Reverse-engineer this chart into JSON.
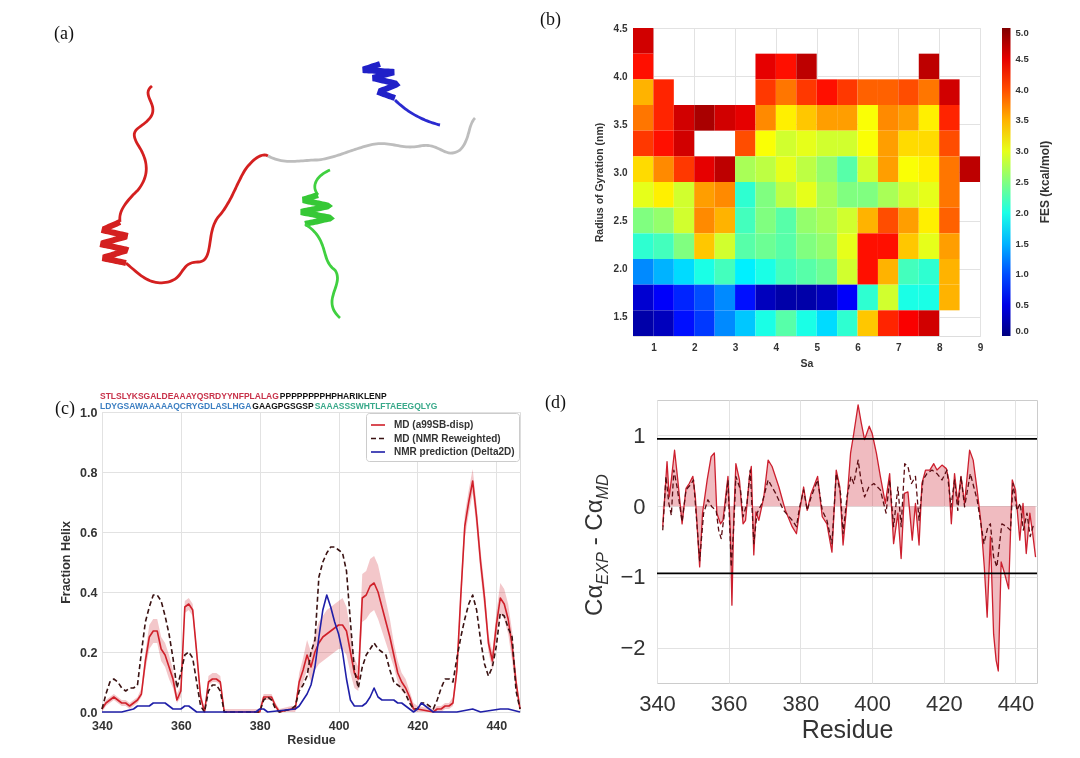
{
  "chart_data": [
    {
      "type": "other",
      "title": "(a)"
    },
    {
      "type": "heatmap",
      "title": "(b)",
      "xlabel": "Sa",
      "ylabel": "Radius of Gyration (nm)",
      "clabel": "FES (kcal/mol)",
      "xlim": [
        0.5,
        9
      ],
      "ylim": [
        1.3,
        4.5
      ],
      "xticks": [
        1,
        2,
        3,
        4,
        5,
        6,
        7,
        8,
        9
      ],
      "yticks": [
        1.5,
        {
          "value": 2,
          "label": "2.0"
        },
        2.5,
        {
          "value": 3,
          "label": "3.0"
        },
        3.5,
        {
          "value": 4,
          "label": "4.0"
        },
        4.5
      ],
      "clim": [
        0,
        5
      ],
      "cticks": [
        {
          "value": 0,
          "label": "0.0"
        },
        0.5,
        {
          "value": 1,
          "label": "1.0"
        },
        1.5,
        {
          "value": 2,
          "label": "2.0"
        },
        2.5,
        {
          "value": 3,
          "label": "3.0"
        },
        3.5,
        {
          "value": 4,
          "label": "4.0"
        },
        4.5,
        {
          "value": 5,
          "label": "5.0"
        }
      ],
      "grid": true,
      "cells": [
        [
          4.6,
          null,
          null,
          null,
          null,
          null,
          null,
          null,
          null,
          null,
          null,
          null,
          null,
          null,
          null,
          null,
          null
        ],
        [
          4.3,
          null,
          null,
          null,
          null,
          null,
          4.5,
          4.3,
          4.7,
          null,
          null,
          null,
          null,
          null,
          4.7,
          null,
          null
        ],
        [
          3.5,
          4.2,
          null,
          null,
          null,
          null,
          4.1,
          3.8,
          4.1,
          4.3,
          4.1,
          3.9,
          3.9,
          4.0,
          3.8,
          4.6,
          null
        ],
        [
          3.8,
          4.2,
          4.6,
          4.8,
          4.6,
          4.5,
          3.7,
          3.2,
          3.4,
          3.6,
          3.6,
          3.1,
          3.7,
          3.6,
          3.2,
          4.2,
          null
        ],
        [
          4.1,
          4.3,
          4.6,
          null,
          null,
          4.0,
          3.1,
          2.9,
          3.0,
          2.9,
          2.9,
          3.1,
          3.6,
          3.3,
          3.3,
          4.0,
          null
        ],
        [
          3.3,
          3.7,
          4.1,
          4.5,
          4.7,
          2.7,
          2.8,
          3.0,
          2.8,
          2.6,
          2.3,
          2.9,
          3.6,
          3.1,
          3.2,
          3.8,
          4.7
        ],
        [
          3.0,
          3.2,
          2.9,
          3.6,
          3.7,
          2.1,
          2.5,
          2.8,
          3.0,
          2.7,
          2.5,
          2.5,
          2.7,
          2.9,
          3.0,
          3.8,
          null
        ],
        [
          2.5,
          2.6,
          2.9,
          3.7,
          3.5,
          2.2,
          2.5,
          2.3,
          2.6,
          2.7,
          2.9,
          3.5,
          4.0,
          3.6,
          3.2,
          3.9,
          null
        ],
        [
          2.1,
          2.2,
          2.5,
          3.4,
          2.9,
          2.3,
          2.4,
          2.3,
          2.5,
          2.6,
          3.0,
          4.3,
          4.3,
          3.4,
          3.0,
          3.6,
          null
        ],
        [
          1.3,
          1.5,
          1.7,
          2.0,
          2.2,
          1.8,
          2.0,
          2.2,
          2.3,
          2.4,
          2.9,
          4.3,
          3.5,
          2.2,
          2.1,
          3.5,
          null
        ],
        [
          0.4,
          0.6,
          0.8,
          1.0,
          1.3,
          0.7,
          0.3,
          0.2,
          0.2,
          0.3,
          0.6,
          2.1,
          2.9,
          2.0,
          2.0,
          3.5,
          null
        ],
        [
          0.2,
          0.3,
          0.7,
          0.9,
          1.3,
          1.6,
          2.0,
          2.3,
          2.0,
          1.7,
          2.1,
          3.4,
          4.2,
          4.4,
          4.6,
          null,
          null
        ]
      ]
    },
    {
      "type": "line",
      "title": "(c)",
      "xlabel": "Residue",
      "ylabel": "Fraction Helix",
      "annotations": [
        "STLSLYKSGALDEAAAYQSRDYYNFPLALAG",
        "PPPPPPPPHPHARIKLENP",
        "LDYGSAWAAAAAQCRYGDLASLHGA",
        "GAAGPGSGSP",
        "SAAASSSWHTLFTAEEGQLYG"
      ],
      "xlim": [
        340,
        446
      ],
      "ylim": [
        0,
        1
      ],
      "xticks": [
        340,
        360,
        380,
        400,
        420,
        440
      ],
      "yticks": [
        {
          "value": 0,
          "label": "0.0"
        },
        0.2,
        0.4,
        0.6,
        0.8,
        {
          "value": 1,
          "label": "1.0"
        }
      ],
      "grid": true,
      "legend": "top right",
      "series": [
        {
          "name": "MD (a99SB-disp)",
          "color": "#d0202a",
          "x": [
            340,
            341,
            342,
            343,
            344,
            345,
            346,
            347,
            348,
            349,
            350,
            351,
            352,
            353,
            354,
            355,
            356,
            357,
            358,
            359,
            360,
            361,
            362,
            363,
            364,
            365,
            366,
            367,
            368,
            369,
            370,
            371,
            380,
            381,
            382,
            383,
            384,
            385,
            388,
            389,
            390,
            391,
            392,
            393,
            394,
            395,
            396,
            397,
            398,
            399,
            400,
            401,
            402,
            403,
            404,
            405,
            406,
            407,
            408,
            409,
            410,
            411,
            412,
            413,
            414,
            415,
            416,
            417,
            418,
            419,
            420,
            424,
            425,
            426,
            427,
            428,
            429,
            430,
            431,
            432,
            433,
            434,
            435,
            436,
            437,
            438,
            439,
            440,
            441,
            442,
            443,
            444,
            445,
            446
          ],
          "values": [
            0.01,
            0.03,
            0.04,
            0.05,
            0.04,
            0.03,
            0.03,
            0.02,
            0.03,
            0.04,
            0.06,
            0.17,
            0.25,
            0.27,
            0.27,
            0.21,
            0.19,
            0.15,
            0.11,
            0.04,
            0.07,
            0.35,
            0.36,
            0.34,
            0.2,
            0.05,
            0,
            0.1,
            0.11,
            0.11,
            0.1,
            0,
            0,
            0.05,
            0.05,
            0.05,
            0.02,
            0,
            0.01,
            0.01,
            0.1,
            0.14,
            0.19,
            0.15,
            0.2,
            0.23,
            0.25,
            0.26,
            0.27,
            0.28,
            0.29,
            0.29,
            0.27,
            0.2,
            0.13,
            0.11,
            0.38,
            0.39,
            0.42,
            0.43,
            0.4,
            0.35,
            0.3,
            0.25,
            0.19,
            0.13,
            0.1,
            0.08,
            0.05,
            0.01,
            0.01,
            0,
            0.01,
            0.01,
            0.02,
            0.02,
            0.03,
            0.14,
            0.39,
            0.62,
            0.7,
            0.77,
            0.65,
            0.5,
            0.38,
            0.23,
            0.17,
            0.29,
            0.38,
            0.36,
            0.31,
            0.22,
            0.1,
            0.01
          ],
          "lower": [
            0,
            0.02,
            0.03,
            0.04,
            0.03,
            0.02,
            0.02,
            0.01,
            0.02,
            0.03,
            0.05,
            0.14,
            0.21,
            0.23,
            0.23,
            0.17,
            0.15,
            0.11,
            0.08,
            0.03,
            0.05,
            0.33,
            0.34,
            0.32,
            0.18,
            0.04,
            0,
            0.09,
            0.1,
            0.1,
            0.09,
            0,
            0,
            0.04,
            0.04,
            0.04,
            0.01,
            0,
            0,
            0,
            0.07,
            0.1,
            0.14,
            0.1,
            0.14,
            0.16,
            0.17,
            0.18,
            0.19,
            0.2,
            0.21,
            0.21,
            0.19,
            0.13,
            0.08,
            0.07,
            0.3,
            0.31,
            0.33,
            0.34,
            0.31,
            0.27,
            0.23,
            0.19,
            0.15,
            0.1,
            0.07,
            0.06,
            0.03,
            0,
            0,
            0,
            0,
            0,
            0.01,
            0.01,
            0.02,
            0.11,
            0.35,
            0.58,
            0.66,
            0.73,
            0.61,
            0.46,
            0.34,
            0.2,
            0.14,
            0.25,
            0.33,
            0.31,
            0.26,
            0.17,
            0.07,
            0
          ],
          "upper": [
            0.02,
            0.04,
            0.05,
            0.06,
            0.05,
            0.04,
            0.04,
            0.03,
            0.04,
            0.05,
            0.08,
            0.2,
            0.29,
            0.31,
            0.31,
            0.25,
            0.23,
            0.19,
            0.14,
            0.06,
            0.09,
            0.37,
            0.38,
            0.36,
            0.22,
            0.07,
            0.01,
            0.12,
            0.13,
            0.13,
            0.12,
            0.01,
            0.01,
            0.06,
            0.06,
            0.06,
            0.03,
            0.01,
            0.02,
            0.02,
            0.13,
            0.18,
            0.24,
            0.2,
            0.26,
            0.3,
            0.32,
            0.34,
            0.35,
            0.36,
            0.37,
            0.38,
            0.35,
            0.27,
            0.18,
            0.15,
            0.46,
            0.47,
            0.51,
            0.52,
            0.49,
            0.43,
            0.37,
            0.31,
            0.23,
            0.17,
            0.13,
            0.11,
            0.07,
            0.03,
            0.02,
            0.01,
            0.02,
            0.02,
            0.03,
            0.03,
            0.05,
            0.17,
            0.43,
            0.66,
            0.74,
            0.81,
            0.69,
            0.54,
            0.42,
            0.26,
            0.2,
            0.33,
            0.43,
            0.41,
            0.36,
            0.27,
            0.13,
            0.01
          ]
        },
        {
          "name": "MD (NMR Reweighted)",
          "color": "#3a1212",
          "line_style": "dashed",
          "x": [
            340,
            341,
            342,
            343,
            344,
            345,
            346,
            347,
            348,
            349,
            350,
            351,
            352,
            353,
            354,
            355,
            356,
            357,
            358,
            359,
            360,
            361,
            362,
            363,
            364,
            365,
            366,
            367,
            368,
            369,
            370,
            371,
            372,
            380,
            381,
            382,
            383,
            384,
            385,
            388,
            389,
            390,
            391,
            392,
            393,
            394,
            395,
            396,
            397,
            398,
            399,
            400,
            401,
            402,
            403,
            404,
            405,
            406,
            407,
            408,
            409,
            410,
            411,
            412,
            413,
            414,
            415,
            416,
            417,
            418,
            419,
            420,
            421,
            422,
            423,
            424,
            425,
            426,
            427,
            428,
            429,
            430,
            431,
            432,
            433,
            434,
            435,
            436,
            437,
            438,
            439,
            440,
            441,
            442,
            443,
            444,
            445,
            446
          ],
          "values": [
            0.01,
            0.06,
            0.1,
            0.11,
            0.1,
            0.08,
            0.07,
            0.08,
            0.08,
            0.09,
            0.2,
            0.3,
            0.35,
            0.39,
            0.39,
            0.37,
            0.32,
            0.26,
            0.18,
            0.08,
            0.13,
            0.19,
            0.2,
            0.18,
            0.1,
            0.02,
            0,
            0.07,
            0.09,
            0.09,
            0.07,
            0,
            0,
            0,
            0.04,
            0.05,
            0.04,
            0.01,
            0,
            0.01,
            0.02,
            0.07,
            0.09,
            0.12,
            0.2,
            0.24,
            0.45,
            0.5,
            0.53,
            0.55,
            0.55,
            0.54,
            0.53,
            0.47,
            0.3,
            0.14,
            0.08,
            0.15,
            0.19,
            0.21,
            0.23,
            0.21,
            0.2,
            0.19,
            0.14,
            0.1,
            0.09,
            0.08,
            0.06,
            0.03,
            0.01,
            0.01,
            0.03,
            0.03,
            0.02,
            0.01,
            0.04,
            0.08,
            0.11,
            0.11,
            0.1,
            0.18,
            0.25,
            0.31,
            0.36,
            0.39,
            0.34,
            0.24,
            0.16,
            0.12,
            0.15,
            0.22,
            0.33,
            0.32,
            0.28,
            0.25,
            0.07,
            0.01
          ]
        },
        {
          "name": "NMR prediction (Delta2D)",
          "color": "#1f1fa8",
          "x": [
            340,
            345,
            348,
            349,
            350,
            351,
            352,
            353,
            356,
            357,
            358,
            359,
            360,
            361,
            362,
            363,
            364,
            370,
            379,
            380,
            381,
            382,
            389,
            390,
            391,
            392,
            393,
            394,
            395,
            396,
            397,
            398,
            399,
            400,
            401,
            402,
            403,
            404,
            405,
            406,
            407,
            408,
            409,
            410,
            411,
            412,
            413,
            414,
            415,
            416,
            417,
            418,
            419,
            420,
            421,
            422,
            423,
            424,
            430,
            434,
            436,
            441,
            443,
            446
          ],
          "values": [
            0,
            0,
            0.01,
            0.02,
            0.02,
            0.02,
            0.02,
            0.03,
            0.03,
            0.02,
            0.01,
            0.01,
            0.01,
            0.02,
            0.02,
            0.01,
            0,
            0,
            0,
            0.01,
            0.01,
            0,
            0.01,
            0.02,
            0.04,
            0.06,
            0.09,
            0.15,
            0.25,
            0.34,
            0.39,
            0.35,
            0.3,
            0.26,
            0.2,
            0.11,
            0.04,
            0.02,
            0.02,
            0.02,
            0.03,
            0.05,
            0.08,
            0.05,
            0.04,
            0.04,
            0.04,
            0.04,
            0.03,
            0.03,
            0.02,
            0.01,
            0,
            0.01,
            0.03,
            0.02,
            0.01,
            0,
            0,
            0.01,
            0,
            0.01,
            0.01,
            0
          ]
        }
      ]
    },
    {
      "type": "line",
      "title": "(d)",
      "xlabel": "Residue",
      "ylabel": "Cα$_{EXP}$ - Cα$_{MD}$",
      "xlim": [
        340,
        446
      ],
      "ylim": [
        -2.5,
        1.5
      ],
      "xticks": [
        340,
        360,
        380,
        400,
        420,
        440
      ],
      "yticks": [
        {
          "value": -2,
          "label": "−2"
        },
        {
          "value": -1,
          "label": "−1"
        },
        0,
        1
      ],
      "grid": true,
      "ref_lines": [
        {
          "axis": "y",
          "value": 0.95,
          "color": "#000000"
        },
        {
          "axis": "y",
          "value": -0.95,
          "color": "#000000"
        }
      ],
      "series": [
        {
          "type": "area",
          "color": "#cc1f2e",
          "x": [
            341.6,
            342.8,
            343.4,
            344,
            344.9,
            345.8,
            347,
            348.1,
            349,
            350,
            350.7,
            351.9,
            352.7,
            354,
            355.1,
            356,
            356.7,
            357.7,
            358.4,
            359.8,
            360.5,
            360.9,
            361.4,
            362,
            363,
            364,
            364.7,
            365.8,
            366.3,
            367,
            367.6,
            368.4,
            369.8,
            371,
            372.1,
            374,
            375.8,
            377.7,
            378.9,
            379.8,
            380.9,
            381.9,
            383,
            384.8,
            386.1,
            387.4,
            388.8,
            390,
            391,
            391.9,
            392.8,
            394,
            394.9,
            396.1,
            397,
            397.9,
            399.2,
            400,
            401.2,
            402.3,
            403.7,
            404.9,
            406,
            407.2,
            408.1,
            409,
            410,
            411.2,
            412.1,
            413.1,
            413.9,
            414.9,
            416.1,
            417.2,
            418.1,
            419.5,
            420.7,
            421.4,
            422.1,
            423,
            423.9,
            424.8,
            425.8,
            427.2,
            428.2,
            429.3,
            430.4,
            431.3,
            432.1,
            433,
            433.9,
            434.6,
            435.2,
            436,
            437,
            438.1,
            439.1,
            440,
            441.2,
            442.1,
            443,
            444,
            444.8,
            445.6
          ],
          "values": [
            -0.29,
            0.63,
            0.13,
            0.37,
            0.79,
            0.37,
            -0.25,
            0.25,
            0.32,
            0.42,
            0.13,
            -0.86,
            -0.1,
            0.37,
            0.7,
            0.75,
            -0.1,
            -0.25,
            -0.2,
            0.42,
            -0.43,
            -1.4,
            -0.2,
            0.6,
            0.37,
            -0.25,
            -0.2,
            0.42,
            0.56,
            -0.69,
            -0.08,
            -0.2,
            0.13,
            0.65,
            0.56,
            0.27,
            -0.06,
            -0.29,
            -0.39,
            -0.06,
            0.27,
            -0.06,
            0.18,
            0.42,
            -0.15,
            -0.25,
            -0.65,
            0.51,
            0.27,
            -0.55,
            -0.06,
            0.75,
            1.03,
            1.43,
            1.17,
            0.94,
            1.13,
            1.03,
            0.75,
            0.42,
            0.04,
            0.46,
            -0.53,
            -0.1,
            -0.74,
            0.18,
            0.2,
            -0.48,
            0.04,
            -0.55,
            0.32,
            0.51,
            0.51,
            0.6,
            0.51,
            0.58,
            0.53,
            0.37,
            -0.25,
            0.46,
            0.04,
            0.42,
            0.04,
            0.79,
            0.65,
            0.23,
            -0.25,
            -0.86,
            -1.57,
            -0.43,
            -1.81,
            -2.18,
            -2.33,
            -0.79,
            -0.96,
            -1.17,
            0.37,
            0.23,
            -0.48,
            0.04,
            -0.67,
            -0.1,
            -0.39,
            -0.72
          ]
        },
        {
          "color": "#5a0c12",
          "line_style": "dashed",
          "x": [
            341.6,
            342.5,
            343.3,
            344,
            344.7,
            345.6,
            347,
            348.1,
            349.3,
            350.2,
            351.9,
            353,
            354.2,
            355.3,
            356.5,
            357.2,
            357.9,
            358.7,
            359.8,
            360.7,
            361.4,
            362,
            363.3,
            364,
            365.1,
            366,
            367,
            367.9,
            369.3,
            371,
            373.1,
            375.3,
            377.7,
            378.9,
            379.8,
            380.9,
            381.9,
            383,
            384.8,
            386.1,
            387.4,
            388.8,
            390,
            391.2,
            391.9,
            393,
            394.1,
            394.9,
            396.1,
            396.9,
            397.9,
            399.1,
            400.5,
            402.3,
            403.9,
            404.9,
            406,
            407.2,
            408.1,
            409.1,
            410,
            411,
            412.1,
            413.1,
            414.2,
            415.3,
            416.7,
            418.1,
            419.5,
            420.9,
            422,
            423,
            423.9,
            424.8,
            425.8,
            427.4,
            429.3,
            431.2,
            432.3,
            433,
            433.9,
            434.8,
            436.2,
            437.5,
            438.6,
            439.3,
            440.4,
            441.3,
            442.2,
            443.2,
            444.1,
            445.1
          ],
          "values": [
            -0.34,
            0.42,
            0.04,
            -0.13,
            0.51,
            0.27,
            -0.22,
            0.23,
            0.3,
            0.37,
            -0.77,
            -0.1,
            0.09,
            -0.01,
            -0.06,
            -0.34,
            -0.46,
            -0.15,
            0.37,
            -0.86,
            -0.29,
            0.42,
            0.23,
            -0.15,
            0.04,
            0.51,
            -0.53,
            -0.1,
            0.04,
            0.37,
            0.18,
            -0.06,
            -0.2,
            -0.29,
            -0.01,
            0.23,
            -0.06,
            0.13,
            0.37,
            -0.06,
            -0.2,
            -0.53,
            0.46,
            0.18,
            -0.39,
            0.13,
            0.42,
            0.32,
            0.65,
            0.37,
            0.13,
            0.27,
            0.32,
            0.23,
            -0.1,
            0.37,
            -0.29,
            0.27,
            -0.29,
            0.6,
            0.56,
            0.32,
            0.42,
            -0.2,
            0.37,
            0.46,
            0.51,
            0.46,
            0.37,
            0.51,
            -0.01,
            0.37,
            -0.06,
            0.42,
            -0.01,
            0.46,
            0.09,
            -0.53,
            -0.29,
            -0.25,
            -0.72,
            -0.86,
            -0.25,
            -0.29,
            -0.34,
            0.32,
            -0.06,
            0.04,
            -0.34,
            -0.1,
            -0.43,
            -0.25
          ]
        }
      ]
    }
  ]
}
